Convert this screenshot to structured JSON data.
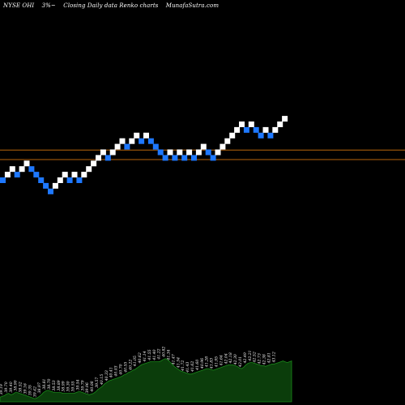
{
  "header": {
    "ticker": "NYSE OHI",
    "change": "3%~",
    "caption": "Closing Daily data Renko charts",
    "site": "MunafaSutra.com"
  },
  "colors": {
    "background": "#000000",
    "up_brick": "#ffffff",
    "down_brick": "#1e78ff",
    "reference_line": "#b8650a",
    "volume_fill": "#0b3d0b",
    "volume_stroke": "#1a8a1a",
    "volume_label": "#ffffff"
  },
  "chart_data": {
    "type": "renko",
    "brick_size": 1,
    "bricks": [
      {
        "dir": "down",
        "level": 0
      },
      {
        "dir": "up",
        "level": 1
      },
      {
        "dir": "up",
        "level": 2
      },
      {
        "dir": "down",
        "level": 1
      },
      {
        "dir": "up",
        "level": 2
      },
      {
        "dir": "up",
        "level": 3
      },
      {
        "dir": "down",
        "level": 2
      },
      {
        "dir": "down",
        "level": 1
      },
      {
        "dir": "down",
        "level": 0
      },
      {
        "dir": "down",
        "level": -1
      },
      {
        "dir": "down",
        "level": -2
      },
      {
        "dir": "up",
        "level": -1
      },
      {
        "dir": "up",
        "level": 0
      },
      {
        "dir": "up",
        "level": 1
      },
      {
        "dir": "down",
        "level": 0
      },
      {
        "dir": "up",
        "level": 1
      },
      {
        "dir": "down",
        "level": 0
      },
      {
        "dir": "up",
        "level": 1
      },
      {
        "dir": "up",
        "level": 2
      },
      {
        "dir": "up",
        "level": 3
      },
      {
        "dir": "up",
        "level": 4
      },
      {
        "dir": "up",
        "level": 5
      },
      {
        "dir": "down",
        "level": 4
      },
      {
        "dir": "up",
        "level": 5
      },
      {
        "dir": "up",
        "level": 6
      },
      {
        "dir": "up",
        "level": 7
      },
      {
        "dir": "down",
        "level": 6
      },
      {
        "dir": "up",
        "level": 7
      },
      {
        "dir": "up",
        "level": 8
      },
      {
        "dir": "down",
        "level": 7
      },
      {
        "dir": "up",
        "level": 8
      },
      {
        "dir": "down",
        "level": 7
      },
      {
        "dir": "down",
        "level": 6
      },
      {
        "dir": "down",
        "level": 5
      },
      {
        "dir": "down",
        "level": 4
      },
      {
        "dir": "up",
        "level": 5
      },
      {
        "dir": "down",
        "level": 4
      },
      {
        "dir": "up",
        "level": 5
      },
      {
        "dir": "down",
        "level": 4
      },
      {
        "dir": "up",
        "level": 5
      },
      {
        "dir": "down",
        "level": 4
      },
      {
        "dir": "up",
        "level": 5
      },
      {
        "dir": "up",
        "level": 6
      },
      {
        "dir": "down",
        "level": 5
      },
      {
        "dir": "down",
        "level": 4
      },
      {
        "dir": "up",
        "level": 5
      },
      {
        "dir": "up",
        "level": 6
      },
      {
        "dir": "up",
        "level": 7
      },
      {
        "dir": "up",
        "level": 8
      },
      {
        "dir": "up",
        "level": 9
      },
      {
        "dir": "up",
        "level": 10
      },
      {
        "dir": "down",
        "level": 9
      },
      {
        "dir": "up",
        "level": 10
      },
      {
        "dir": "down",
        "level": 9
      },
      {
        "dir": "down",
        "level": 8
      },
      {
        "dir": "up",
        "level": 9
      },
      {
        "dir": "down",
        "level": 8
      },
      {
        "dir": "up",
        "level": 9
      },
      {
        "dir": "up",
        "level": 10
      },
      {
        "dir": "up",
        "level": 11
      }
    ],
    "reference_levels": [
      5.4,
      3.7
    ],
    "volume_profile": [
      6,
      7,
      8,
      10,
      11,
      9,
      10,
      12,
      12,
      11,
      10,
      9,
      8,
      7,
      6,
      5,
      4,
      5,
      7,
      9,
      12,
      14,
      15,
      14,
      13,
      12,
      12,
      12,
      12,
      11,
      11,
      11,
      11,
      11,
      11,
      12,
      13,
      13,
      12,
      11,
      10,
      9,
      10,
      11,
      13,
      16,
      18,
      20,
      23,
      25,
      27,
      28,
      29,
      30,
      31,
      32,
      33,
      35,
      36,
      38,
      39,
      41,
      42,
      44,
      46,
      48,
      49,
      50,
      51,
      52,
      52,
      52,
      52,
      52,
      53,
      55,
      56,
      55,
      52,
      49,
      46,
      44,
      42,
      40,
      39,
      38,
      37,
      36,
      36,
      37,
      38,
      39,
      40,
      41,
      42,
      43,
      43,
      42,
      41,
      42,
      43,
      44,
      45,
      46,
      47,
      48,
      48,
      48,
      47,
      46,
      44,
      43,
      45,
      48,
      50,
      51,
      51,
      50,
      49,
      48,
      47,
      47,
      46,
      47,
      48,
      49,
      49,
      50,
      51,
      52,
      53,
      52,
      51,
      52,
      53
    ],
    "volume_labels": [
      "39.19",
      "39.70",
      "39.40",
      "38.90",
      "38.52",
      "39.16",
      "39.35",
      "39.42",
      "38.97",
      "38.81",
      "38.70",
      "38.53",
      "38.89",
      "38.99",
      "39.30",
      "39.55",
      "39.54",
      "39.79",
      "39.96",
      "40.08",
      "39.57",
      "40.15",
      "40.33",
      "40.41",
      "40.03",
      "40.70",
      "40.55",
      "40.22",
      "41.05",
      "40.62",
      "41.14",
      "41.55",
      "41.40",
      "41.22",
      "40.82",
      "41.34",
      "41.47",
      "41.54",
      "41.72",
      "41.43",
      "41.62",
      "41.60",
      "40.96",
      "41.28",
      "41.83",
      "41.95",
      "41.64",
      "42.04",
      "42.18",
      "42.30",
      "42.01",
      "42.49",
      "42.21",
      "42.52",
      "42.73",
      "42.38",
      "42.81",
      "43.12"
    ]
  }
}
